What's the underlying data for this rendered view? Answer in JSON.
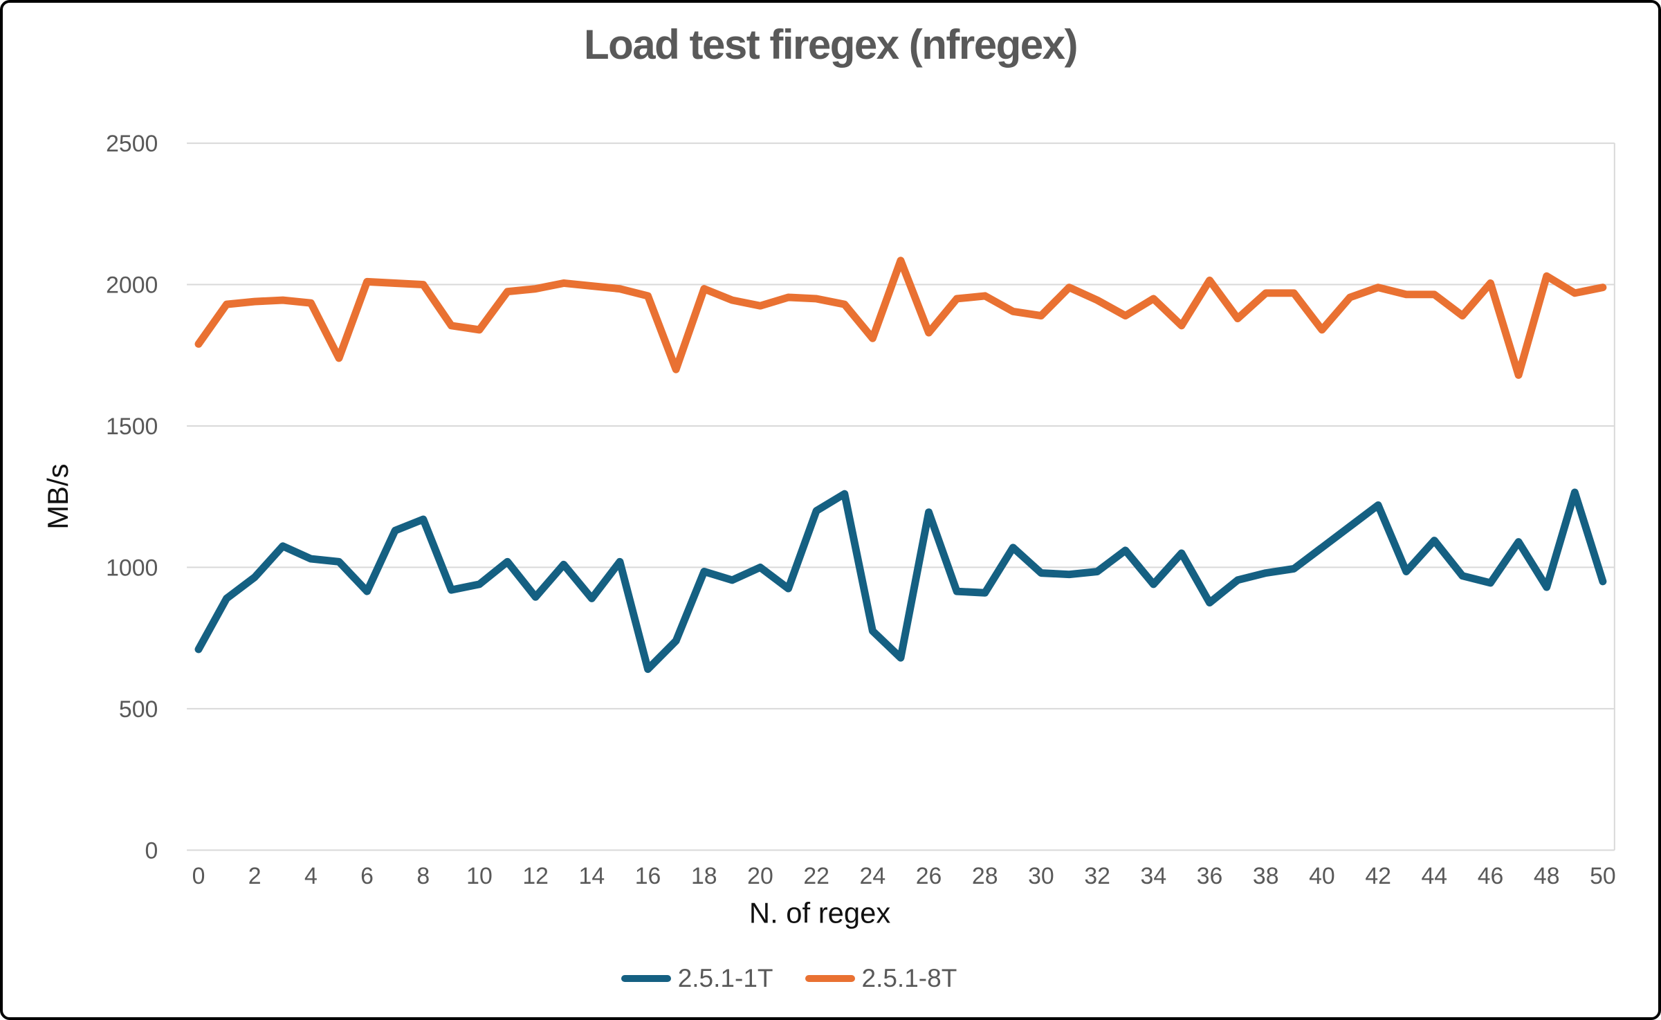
{
  "chart": {
    "title": "Load test firegex (nfregex)",
    "x_axis_title": "N. of regex",
    "y_axis_title": "MB/s"
  },
  "chart_data": {
    "type": "line",
    "title": "Load test firegex (nfregex)",
    "xlabel": "N. of regex",
    "ylabel": "MB/s",
    "ylim": [
      0,
      2500
    ],
    "grid": "horizontal-major",
    "gridline_color": "#D9D9D9",
    "tick_label_color": "#595959",
    "axis_title_color": "#111111",
    "title_color": "#595959",
    "legend_position": "bottom",
    "x": [
      0,
      1,
      2,
      3,
      4,
      5,
      6,
      7,
      8,
      9,
      10,
      11,
      12,
      13,
      14,
      15,
      16,
      17,
      18,
      19,
      20,
      21,
      22,
      23,
      24,
      25,
      26,
      27,
      28,
      29,
      30,
      31,
      32,
      33,
      34,
      35,
      36,
      37,
      38,
      39,
      40,
      41,
      42,
      43,
      44,
      45,
      46,
      47,
      48,
      49,
      50
    ],
    "x_ticks": [
      0,
      2,
      4,
      6,
      8,
      10,
      12,
      14,
      16,
      18,
      20,
      22,
      24,
      26,
      28,
      30,
      32,
      34,
      36,
      38,
      40,
      42,
      44,
      46,
      48,
      50
    ],
    "y_ticks": [
      0,
      500,
      1000,
      1500,
      2000,
      2500
    ],
    "series": [
      {
        "name": "2.5.1-1T",
        "color": "#156082",
        "values": [
          710,
          890,
          965,
          1075,
          1030,
          1020,
          915,
          1130,
          1170,
          920,
          940,
          1020,
          895,
          1010,
          890,
          1020,
          640,
          740,
          985,
          955,
          1000,
          925,
          1200,
          1260,
          775,
          680,
          1195,
          915,
          910,
          1070,
          980,
          975,
          985,
          1060,
          940,
          1050,
          875,
          955,
          980,
          995,
          1070,
          1145,
          1220,
          985,
          1095,
          970,
          945,
          1090,
          930,
          1265,
          950
        ]
      },
      {
        "name": "2.5.1-8T",
        "color": "#E97132",
        "values": [
          1790,
          1930,
          1940,
          1945,
          1935,
          1740,
          2010,
          2005,
          2000,
          1855,
          1840,
          1975,
          1985,
          2005,
          1995,
          1985,
          1960,
          1700,
          1985,
          1945,
          1925,
          1955,
          1950,
          1930,
          1810,
          2085,
          1830,
          1950,
          1960,
          1905,
          1890,
          1990,
          1945,
          1890,
          1950,
          1855,
          2015,
          1880,
          1970,
          1970,
          1840,
          1955,
          1990,
          1965,
          1965,
          1890,
          2005,
          1680,
          2030,
          1970,
          1990
        ]
      }
    ]
  }
}
